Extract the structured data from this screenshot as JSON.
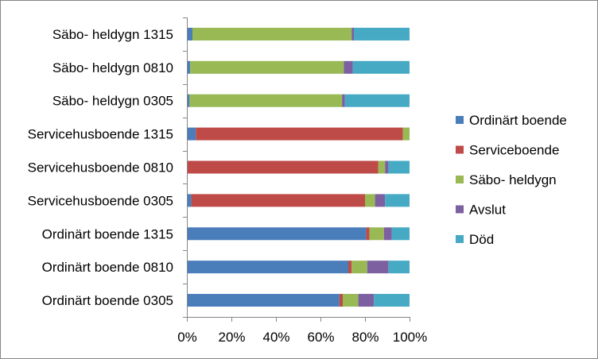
{
  "chart_data": {
    "type": "bar",
    "orientation": "horizontal",
    "stacked": "percent",
    "categories": [
      "Säbo- heldygn 1315",
      "Säbo- heldygn 0810",
      "Säbo- heldygn 0305",
      "Servicehusboende 1315",
      "Servicehusboende 0810",
      "Servicehusboende 0305",
      "Ordinärt boende 1315",
      "Ordinärt boende 0810",
      "Ordinärt boende 0305"
    ],
    "series": [
      {
        "name": "Ordinärt boende",
        "color": "#4A7EBB",
        "values": [
          2.5,
          1.5,
          1.2,
          4,
          0,
          2,
          80.5,
          72.5,
          68.5
        ]
      },
      {
        "name": "Serviceboende",
        "color": "#BE4B48",
        "values": [
          0,
          0,
          0,
          93,
          86,
          78,
          1.5,
          1.5,
          1.5
        ]
      },
      {
        "name": "Säbo- heldygn",
        "color": "#98B954",
        "values": [
          71.5,
          69,
          68.5,
          3,
          3,
          4.5,
          6.5,
          7,
          7
        ]
      },
      {
        "name": "Avslut",
        "color": "#7D60A0",
        "values": [
          1,
          4,
          1.3,
          0,
          1.5,
          4.5,
          3.5,
          9.5,
          7
        ]
      },
      {
        "name": "Död",
        "color": "#46AAC5",
        "values": [
          25,
          25.5,
          29,
          0,
          9.5,
          11,
          8,
          9.5,
          16
        ]
      }
    ],
    "x_ticks": [
      "0%",
      "20%",
      "40%",
      "60%",
      "80%",
      "100%"
    ],
    "xlim": [
      0,
      100
    ],
    "grid": false,
    "legend": {
      "placement": "right",
      "order": [
        "Ordinärt boende",
        "Serviceboende",
        "Säbo- heldygn",
        "Avslut",
        "Död"
      ]
    }
  }
}
